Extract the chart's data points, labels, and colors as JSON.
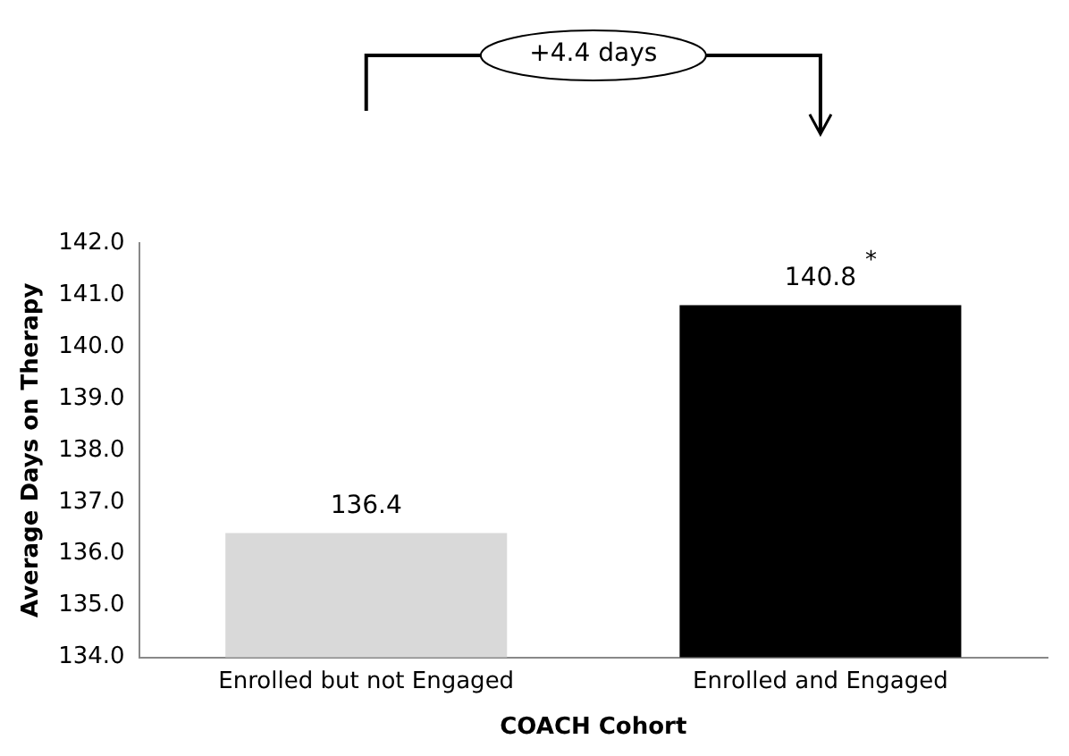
{
  "chart_data": {
    "type": "bar",
    "xlabel": "COACH Cohort",
    "ylabel": "Average Days on Therapy",
    "categories": [
      "Enrolled but not Engaged",
      "Enrolled and Engaged"
    ],
    "values": [
      136.4,
      140.8
    ],
    "colors": [
      "#d9d9d9",
      "#000000"
    ],
    "ylim": [
      134,
      142
    ],
    "yticks": [
      {
        "value": 134,
        "label": "134.0"
      },
      {
        "value": 135,
        "label": "135.0"
      },
      {
        "value": 136,
        "label": "136.0"
      },
      {
        "value": 137,
        "label": "137.0"
      },
      {
        "value": 138,
        "label": "138.0"
      },
      {
        "value": 139,
        "label": "139.0"
      },
      {
        "value": 140,
        "label": "140.0"
      },
      {
        "value": 141,
        "label": "141.0"
      },
      {
        "value": 142,
        "label": "142.0"
      }
    ],
    "data_labels": true,
    "grid": false,
    "legend": false,
    "annotations": [
      "+4.4 days",
      {
        "text": "*",
        "x": "Enrolled and Engaged",
        "y": 140.8
      }
    ]
  }
}
